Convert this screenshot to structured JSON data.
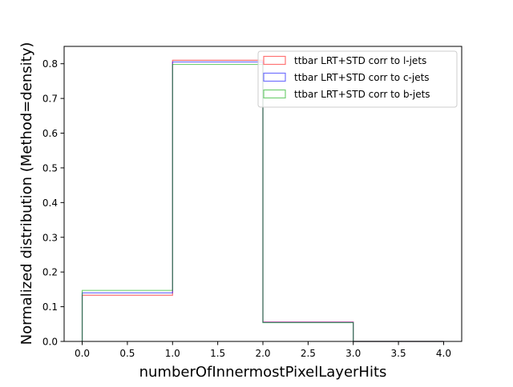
{
  "chart_data": {
    "type": "step-histogram",
    "xlabel": "numberOfInnermostPixelLayerHits",
    "ylabel": "Normalized distribution (Method=density)",
    "xlim": [
      -0.2,
      4.2
    ],
    "ylim": [
      0,
      0.85
    ],
    "x_ticks": [
      "0.0",
      "0.5",
      "1.0",
      "1.5",
      "2.0",
      "2.5",
      "3.0",
      "3.5",
      "4.0"
    ],
    "y_ticks": [
      "0.0",
      "0.1",
      "0.2",
      "0.3",
      "0.4",
      "0.5",
      "0.6",
      "0.7",
      "0.8"
    ],
    "bin_edges": [
      0,
      1,
      2,
      3,
      4
    ],
    "legend_position": "top-right",
    "series": [
      {
        "name": "ttbar LRT+STD corr to l-jets",
        "color": "#ff0000",
        "values": [
          0.133,
          0.81,
          0.056,
          0.0
        ]
      },
      {
        "name": "ttbar LRT+STD corr to c-jets",
        "color": "#0000ff",
        "values": [
          0.14,
          0.805,
          0.055,
          0.0
        ]
      },
      {
        "name": "ttbar LRT+STD corr to b-jets",
        "color": "#00aa00",
        "values": [
          0.147,
          0.798,
          0.054,
          0.0
        ]
      }
    ]
  }
}
